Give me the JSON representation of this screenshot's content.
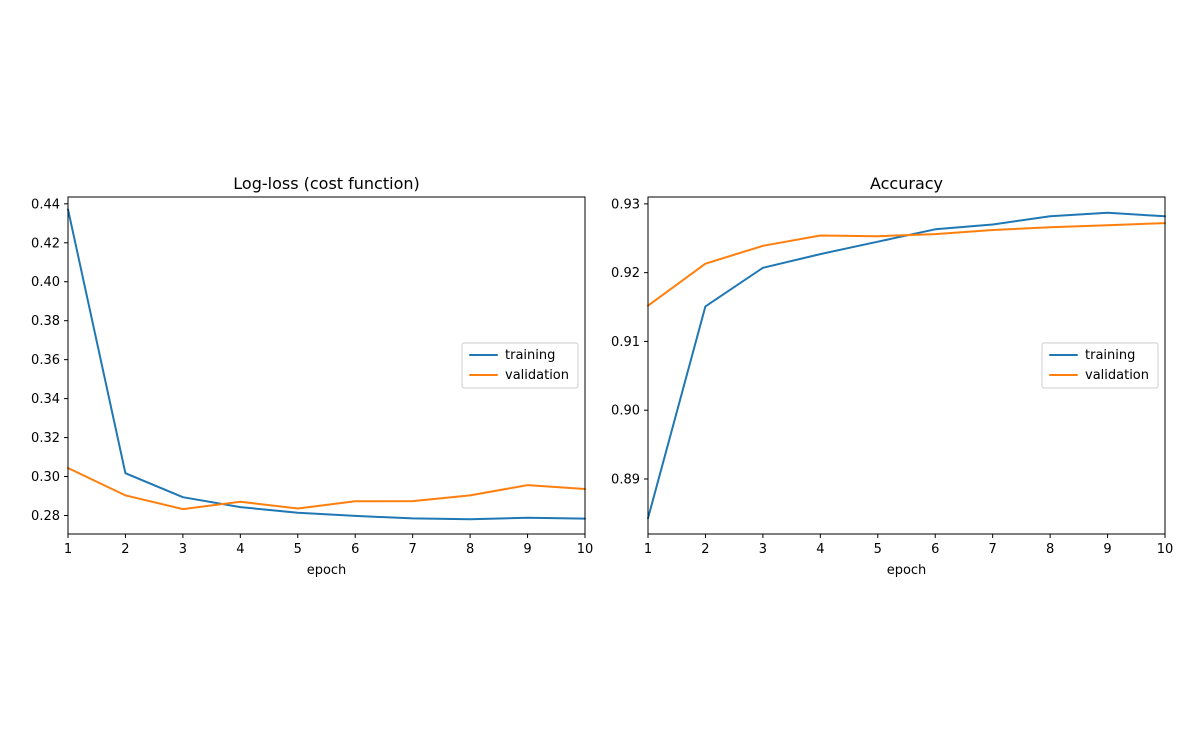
{
  "colors": {
    "training": "#1f77b4",
    "validation": "#ff7f0e"
  },
  "chart_data": [
    {
      "type": "line",
      "title": "Log-loss (cost function)",
      "xlabel": "epoch",
      "ylabel": "",
      "x": [
        1,
        2,
        3,
        4,
        5,
        6,
        7,
        8,
        9,
        10
      ],
      "xlim": [
        1,
        10
      ],
      "ylim": [
        0.2705,
        0.4435
      ],
      "xticks": [
        "1",
        "2",
        "3",
        "4",
        "5",
        "6",
        "7",
        "8",
        "9",
        "10"
      ],
      "yticks": [
        "0.28",
        "0.30",
        "0.32",
        "0.34",
        "0.36",
        "0.38",
        "0.40",
        "0.42",
        "0.44"
      ],
      "legend_position": "center-right",
      "grid": false,
      "series": [
        {
          "name": "training",
          "values": [
            0.4372,
            0.3017,
            0.2894,
            0.2843,
            0.2814,
            0.2798,
            0.2785,
            0.2781,
            0.2788,
            0.2784
          ]
        },
        {
          "name": "validation",
          "values": [
            0.3044,
            0.2903,
            0.2833,
            0.2871,
            0.2836,
            0.2873,
            0.2874,
            0.2903,
            0.2956,
            0.2936
          ]
        }
      ]
    },
    {
      "type": "line",
      "title": "Accuracy",
      "xlabel": "epoch",
      "ylabel": "",
      "x": [
        1,
        2,
        3,
        4,
        5,
        6,
        7,
        8,
        9,
        10
      ],
      "xlim": [
        1,
        10
      ],
      "ylim": [
        0.882,
        0.931
      ],
      "xticks": [
        "1",
        "2",
        "3",
        "4",
        "5",
        "6",
        "7",
        "8",
        "9",
        "10"
      ],
      "yticks": [
        "0.89",
        "0.90",
        "0.91",
        "0.92",
        "0.93"
      ],
      "legend_position": "center-right",
      "grid": false,
      "series": [
        {
          "name": "training",
          "values": [
            0.8843,
            0.9151,
            0.9207,
            0.9227,
            0.9245,
            0.9263,
            0.927,
            0.9282,
            0.9287,
            0.9282
          ]
        },
        {
          "name": "validation",
          "values": [
            0.9152,
            0.9213,
            0.9239,
            0.9254,
            0.9253,
            0.9256,
            0.9262,
            0.9266,
            0.9269,
            0.9272
          ]
        }
      ]
    }
  ]
}
